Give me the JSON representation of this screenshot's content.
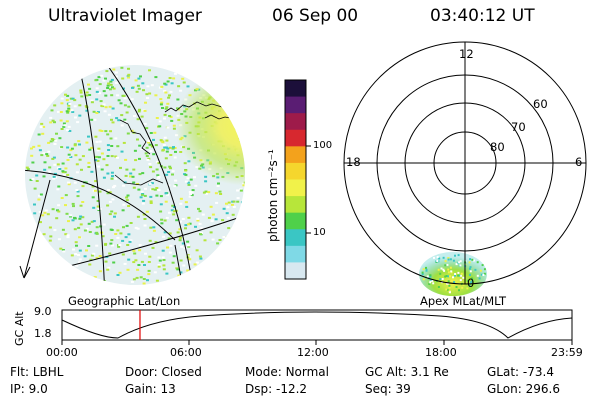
{
  "header": {
    "instrument": "Ultraviolet Imager",
    "date": "06 Sep 00",
    "time": "03:40:12 UT"
  },
  "left_panel": {
    "caption": "Geographic Lat/Lon"
  },
  "colorbar": {
    "unit_label": "photon cm⁻²s⁻¹",
    "tick_labels": [
      "100",
      "10"
    ],
    "tick_values": [
      100,
      10
    ],
    "scale": "log",
    "range": [
      2.5,
      600
    ],
    "colors": [
      "#1c0f3a",
      "#5a1d73",
      "#9e1b4a",
      "#d7282f",
      "#f3a21c",
      "#f5d62d",
      "#f1f24a",
      "#b7e63a",
      "#4fd04a",
      "#3ac6c4",
      "#7fd9e6",
      "#d8e8f0"
    ]
  },
  "polar_plot": {
    "caption": "Apex MLat/MLT",
    "mlt_labels": {
      "top": "12",
      "left": "18",
      "right": "6",
      "bottom": "0"
    },
    "lat_labels": [
      "60",
      "70",
      "80"
    ],
    "lat_values": [
      60,
      70,
      80
    ]
  },
  "timeline": {
    "y_axis_title": "GC Alt",
    "y_ticks": [
      "9.0",
      "1.8"
    ],
    "x_ticks": [
      "00:00",
      "06:00",
      "12:00",
      "18:00",
      "23:59"
    ],
    "current_time_hours": 3.67
  },
  "footer": {
    "row1": [
      {
        "label": "Flt:",
        "value": "LBHL"
      },
      {
        "label": "Door:",
        "value": "Closed"
      },
      {
        "label": "Mode:",
        "value": "Normal"
      },
      {
        "label": "GC Alt:",
        "value": "3.1 Re"
      },
      {
        "label": "GLat:",
        "value": "-73.4"
      }
    ],
    "row2": [
      {
        "label": "IP:",
        "value": "9.0"
      },
      {
        "label": "Gain:",
        "value": "13"
      },
      {
        "label": "Dsp:",
        "value": "-12.2"
      },
      {
        "label": "Seq:",
        "value": "39"
      },
      {
        "label": "GLon:",
        "value": "296.6"
      }
    ]
  }
}
